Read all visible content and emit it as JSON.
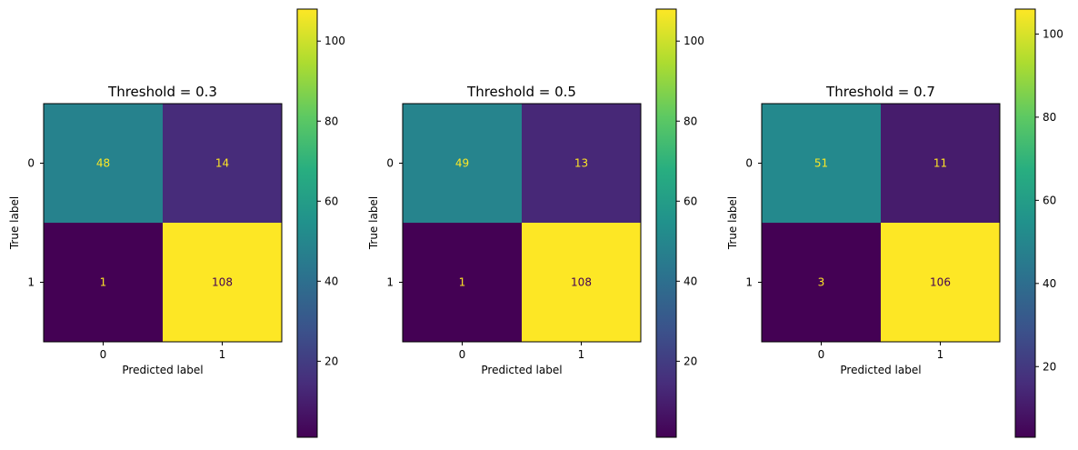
{
  "chart_data": [
    {
      "type": "heatmap",
      "title": "Threshold = 0.3",
      "xlabel": "Predicted label",
      "ylabel": "True label",
      "x_categories": [
        "0",
        "1"
      ],
      "y_categories": [
        "0",
        "1"
      ],
      "values": [
        [
          48,
          14
        ],
        [
          1,
          108
        ]
      ],
      "colormap": "viridis",
      "colorbar": {
        "min": 1,
        "max": 108,
        "ticks": [
          20,
          40,
          60,
          80,
          100
        ]
      }
    },
    {
      "type": "heatmap",
      "title": "Threshold = 0.5",
      "xlabel": "Predicted label",
      "ylabel": "True label",
      "x_categories": [
        "0",
        "1"
      ],
      "y_categories": [
        "0",
        "1"
      ],
      "values": [
        [
          49,
          13
        ],
        [
          1,
          108
        ]
      ],
      "colormap": "viridis",
      "colorbar": {
        "min": 1,
        "max": 108,
        "ticks": [
          20,
          40,
          60,
          80,
          100
        ]
      }
    },
    {
      "type": "heatmap",
      "title": "Threshold = 0.7",
      "xlabel": "Predicted label",
      "ylabel": "True label",
      "x_categories": [
        "0",
        "1"
      ],
      "y_categories": [
        "0",
        "1"
      ],
      "values": [
        [
          51,
          11
        ],
        [
          3,
          106
        ]
      ],
      "colormap": "viridis",
      "colorbar": {
        "min": 3,
        "max": 106,
        "ticks": [
          20,
          40,
          60,
          80,
          100
        ]
      }
    }
  ]
}
